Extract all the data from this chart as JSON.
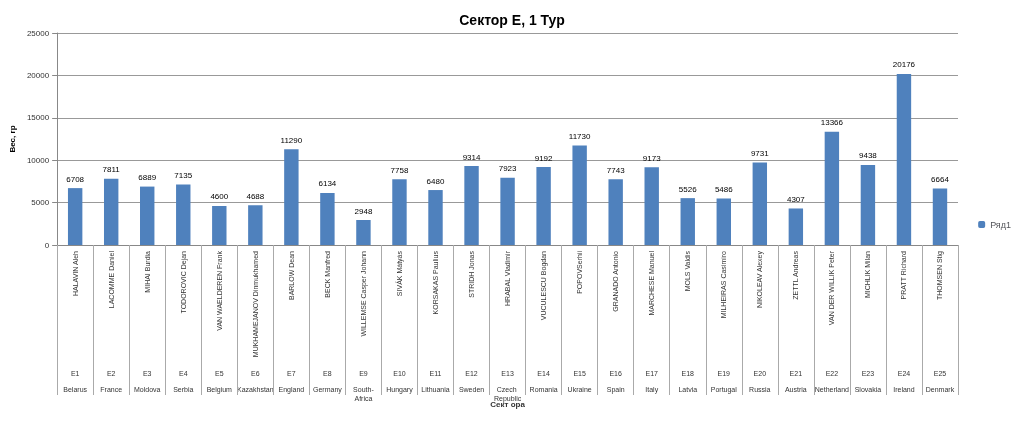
{
  "chart_data": {
    "type": "bar",
    "title": "Сектор E, 1 Тур",
    "ylabel": "Вес, гр",
    "categories": [
      "HALAVIN Aleh",
      "LACOMME Daniel",
      "MIHAI Burdia",
      "TODOROVIC Dejan",
      "VAN WAELDEREN Frank",
      "MUKHAMEJANOV Dinmukhamed",
      "BARLOW Dean",
      "BECK Manfred",
      "WILLEMSE Casper Johann",
      "SIVÁK Mátyás",
      "KORSAKAS Paulius",
      "STRIDH Jonas",
      "HRABAL Vladimir",
      "VUCULESCU Bogdan",
      "POPOVSerhii",
      "GRANADO Antonio",
      "MARCHESE Manuel",
      "MOLS Valdis",
      "MILHEIRAS Casimiro",
      "NIKOLEAV Alexey",
      "ZETTL Andreas",
      "VAN DER WILLIK Peter",
      "MICHLIK Milan",
      "PRATT Richard",
      "THOMSEN Stig"
    ],
    "series": [
      {
        "name": "Ряд1",
        "color": "#4f81bd",
        "values": [
          6708,
          7811,
          6889,
          7135,
          4600,
          4688,
          11290,
          6134,
          2948,
          7758,
          6480,
          9314,
          7923,
          9192,
          11730,
          7743,
          9173,
          5526,
          5486,
          9731,
          4307,
          13366,
          9438,
          20176,
          6664
        ]
      }
    ],
    "annotations": [
      "E1",
      "Belarus",
      "E2",
      "France",
      "E3",
      "Moldova",
      "E4",
      "Serbia",
      "E5",
      "Belgium",
      "E6",
      "Kazakhstan",
      "E7",
      "England",
      "E8",
      "Germany",
      "E9",
      "South-Africa",
      "E10",
      "Hungary",
      "E11",
      "Lithuania",
      "E12",
      "Sweden",
      "E13",
      "Czech Republic",
      "E14",
      "Romania",
      "E15",
      "Ukraine",
      "E16",
      "Spain",
      "E17",
      "Italy",
      "E18",
      "Latvia",
      "E19",
      "Portugal",
      "E20",
      "Russia",
      "E21",
      "Austria",
      "E22",
      "Netherland",
      "E23",
      "Slovakia",
      "E24",
      "Ireland",
      "E25",
      "Denmark",
      "Сект ора"
    ],
    "ylim": [
      0,
      25000
    ],
    "yticks": [
      0,
      5000,
      10000,
      15000,
      20000,
      25000
    ],
    "grid": "y",
    "legend": "right",
    "data_labels": true
  }
}
